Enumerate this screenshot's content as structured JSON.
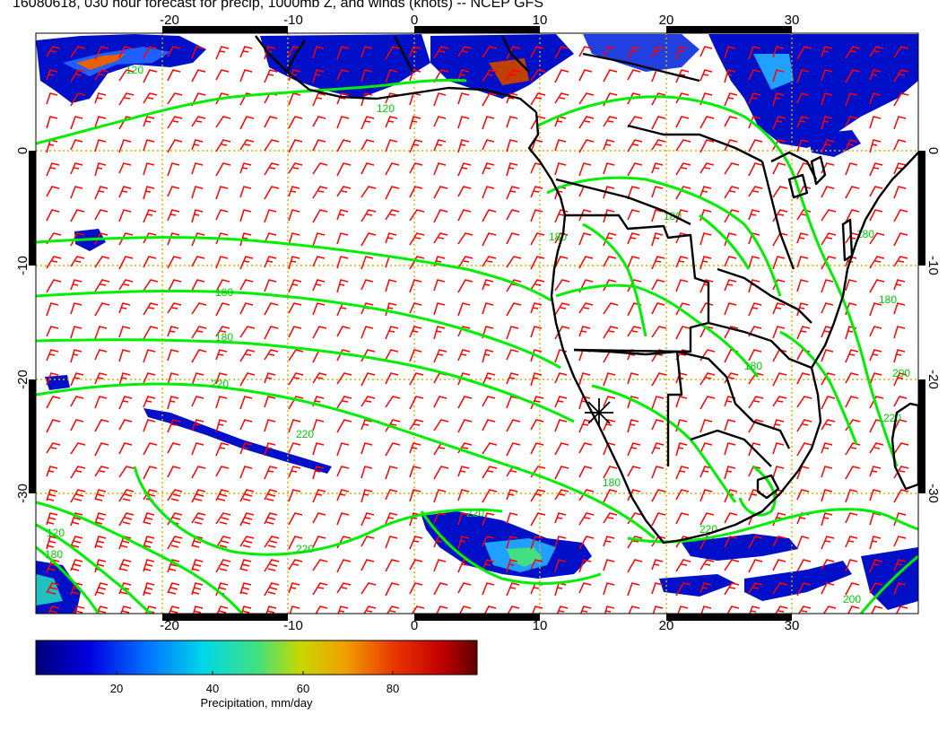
{
  "title": "16080618, 030 hour forecast for precip, 1000mb Z, and winds (knots) -- NCEP GFS",
  "map": {
    "lon_range": [
      -30,
      40
    ],
    "lat_range": [
      -40,
      10
    ],
    "lon_ticks": [
      "-20",
      "-10",
      "0",
      "10",
      "20",
      "30"
    ],
    "lat_ticks": [
      "0",
      "-10",
      "-20",
      "-30"
    ],
    "contour_labels": [
      "120",
      "120",
      "180",
      "180",
      "180",
      "180",
      "180",
      "220",
      "220",
      "220",
      "180",
      "220",
      "220",
      "220",
      "200",
      "180",
      "120",
      "180",
      "200",
      "180"
    ],
    "colors": {
      "wind_barbs": "#ff0000",
      "height_contours": "#00ff00",
      "coastlines": "#000000",
      "grid": "#d8b000"
    }
  },
  "colorbar": {
    "ticks": [
      "20",
      "40",
      "60",
      "80"
    ],
    "label": "Precipitation, mm/day",
    "range": [
      0,
      100
    ]
  }
}
